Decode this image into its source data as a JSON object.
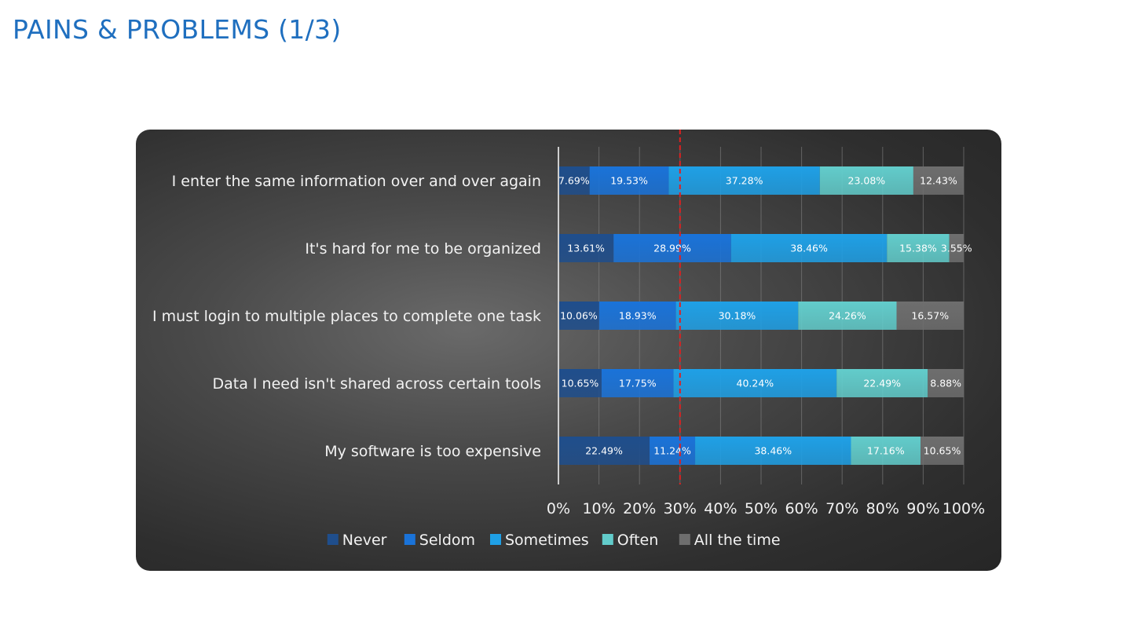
{
  "page": {
    "title": "PAINS & PROBLEMS (1/3)"
  },
  "chart_data": {
    "type": "bar",
    "orientation": "horizontal",
    "stacked": true,
    "percent": true,
    "categories": [
      "I enter the same information over and over again",
      "It's hard for me to be organized",
      "I must login to multiple places to complete one task",
      "Data I need isn't shared across certain tools",
      "My software is too expensive"
    ],
    "series": [
      {
        "name": "Never",
        "color": "#1f4e8c",
        "values": [
          7.69,
          13.61,
          10.06,
          10.65,
          22.49
        ]
      },
      {
        "name": "Seldom",
        "color": "#1a73d9",
        "values": [
          19.53,
          28.99,
          18.93,
          17.75,
          11.24
        ]
      },
      {
        "name": "Sometimes",
        "color": "#1fa0e6",
        "values": [
          37.28,
          38.46,
          30.18,
          40.24,
          38.46
        ]
      },
      {
        "name": "Often",
        "color": "#62cccb",
        "values": [
          23.08,
          15.38,
          24.26,
          22.49,
          17.16
        ]
      },
      {
        "name": "All the time",
        "color": "#6e6e6e",
        "values": [
          12.43,
          3.55,
          16.57,
          8.88,
          10.65
        ]
      }
    ],
    "data_labels": [
      [
        "7.69%",
        "19.53%",
        "37.28%",
        "23.08%",
        "12.43%"
      ],
      [
        "13.61%",
        "28.99%",
        "38.46%",
        "15.38%",
        "3.55%"
      ],
      [
        "10.06%",
        "18.93%",
        "30.18%",
        "24.26%",
        "16.57%"
      ],
      [
        "10.65%",
        "17.75%",
        "40.24%",
        "22.49%",
        "8.88%"
      ],
      [
        "22.49%",
        "11.24%",
        "38.46%",
        "17.16%",
        "10.65%"
      ]
    ],
    "x_ticks": [
      "0%",
      "10%",
      "20%",
      "30%",
      "40%",
      "50%",
      "60%",
      "70%",
      "80%",
      "90%",
      "100%"
    ],
    "xlim": [
      0,
      100
    ],
    "reference_line": {
      "value": 30,
      "color": "#e02020",
      "style": "dashed"
    },
    "grid": true,
    "legend": "bottom",
    "background": "#3a3a3a"
  }
}
